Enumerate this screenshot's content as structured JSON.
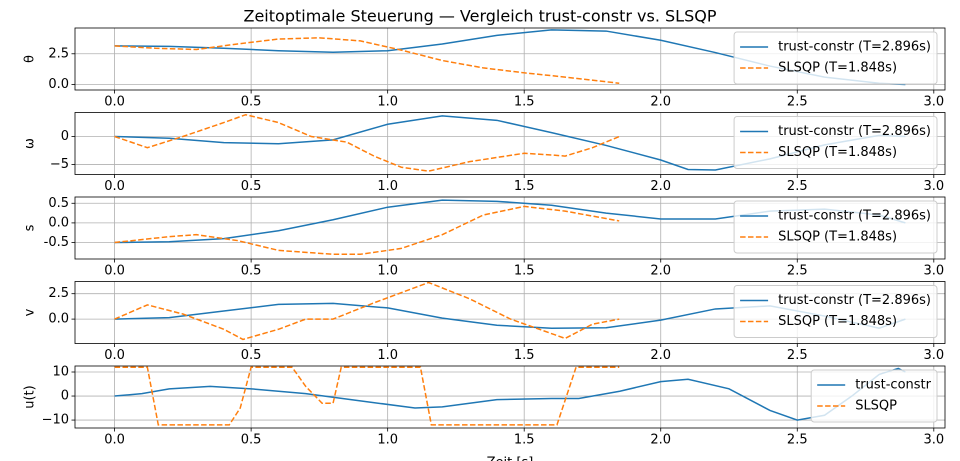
{
  "title": "Zeitoptimale Steuerung — Vergleich trust-constr vs. SLSQP",
  "chart_data": [
    {
      "type": "line",
      "ylabel": "θ",
      "grid": true,
      "legend": "upper right",
      "xlim": [
        -0.145,
        3.041
      ],
      "xticks": [
        {
          "value": 0,
          "label": "0.0"
        },
        0.5,
        {
          "value": 1,
          "label": "1.0"
        },
        1.5,
        {
          "value": 2,
          "label": "2.0"
        },
        2.5,
        {
          "value": 3,
          "label": "3.0"
        }
      ],
      "ylim": [
        -0.45,
        4.6
      ],
      "yticks": [
        {
          "value": 0,
          "label": "0.0"
        },
        2.5
      ],
      "series": [
        {
          "name": "trust-constr (T=2.896s)",
          "color": "#1f77b4",
          "dash": false,
          "x": [
            0,
            0.2,
            0.4,
            0.6,
            0.8,
            1.0,
            1.2,
            1.4,
            1.6,
            1.8,
            2.0,
            2.2,
            2.4,
            2.6,
            2.8,
            2.896
          ],
          "values": [
            3.14,
            3.1,
            2.95,
            2.75,
            2.62,
            2.75,
            3.3,
            4.0,
            4.45,
            4.35,
            3.6,
            2.6,
            1.5,
            0.6,
            0.1,
            0
          ]
        },
        {
          "name": "SLSQP (T=1.848s)",
          "color": "#ff7f0e",
          "dash": true,
          "x": [
            0,
            0.15,
            0.3,
            0.45,
            0.6,
            0.75,
            0.9,
            1.05,
            1.2,
            1.35,
            1.5,
            1.65,
            1.848
          ],
          "values": [
            3.14,
            2.95,
            2.85,
            3.3,
            3.7,
            3.8,
            3.55,
            2.8,
            1.95,
            1.35,
            0.95,
            0.6,
            0.1
          ]
        }
      ]
    },
    {
      "type": "line",
      "ylabel": "ω",
      "grid": true,
      "legend": "upper right",
      "xlim": [
        -0.145,
        3.041
      ],
      "xticks": [
        {
          "value": 0,
          "label": "0.0"
        },
        0.5,
        {
          "value": 1,
          "label": "1.0"
        },
        1.5,
        {
          "value": 2,
          "label": "2.0"
        },
        2.5,
        {
          "value": 3,
          "label": "3.0"
        }
      ],
      "ylim": [
        -6.8,
        4.3
      ],
      "yticks": [
        {
          "value": -5,
          "label": "−5"
        },
        0
      ],
      "series": [
        {
          "name": "trust-constr (T=2.896s)",
          "color": "#1f77b4",
          "dash": false,
          "x": [
            0,
            0.2,
            0.4,
            0.6,
            0.8,
            1.0,
            1.2,
            1.4,
            1.6,
            1.8,
            2.0,
            2.1,
            2.2,
            2.4,
            2.6,
            2.8,
            2.896
          ],
          "values": [
            0,
            -0.3,
            -1.1,
            -1.3,
            -0.6,
            2.2,
            3.7,
            2.9,
            0.7,
            -1.6,
            -4.2,
            -5.9,
            -6.0,
            -4.0,
            -1.5,
            0.2,
            0
          ]
        },
        {
          "name": "SLSQP (T=1.848s)",
          "color": "#ff7f0e",
          "dash": true,
          "x": [
            0,
            0.12,
            0.25,
            0.4,
            0.48,
            0.6,
            0.72,
            0.85,
            0.95,
            1.05,
            1.15,
            1.3,
            1.5,
            1.6,
            1.65,
            1.75,
            1.848
          ],
          "values": [
            0,
            -2,
            0,
            2.5,
            3.9,
            2.5,
            0,
            -1,
            -3.5,
            -5.5,
            -6.2,
            -4.5,
            -3,
            -3.3,
            -3.5,
            -2,
            0
          ]
        }
      ]
    },
    {
      "type": "line",
      "ylabel": "s",
      "grid": true,
      "legend": "upper right",
      "xlim": [
        -0.145,
        3.041
      ],
      "xticks": [
        {
          "value": 0,
          "label": "0.0"
        },
        0.5,
        {
          "value": 1,
          "label": "1.0"
        },
        1.5,
        {
          "value": 2,
          "label": "2.0"
        },
        2.5,
        {
          "value": 3,
          "label": "3.0"
        }
      ],
      "ylim": [
        -0.92,
        0.66
      ],
      "yticks": [
        -0.5,
        {
          "value": 0,
          "label": "0.0"
        },
        0.5
      ],
      "series": [
        {
          "name": "trust-constr (T=2.896s)",
          "color": "#1f77b4",
          "dash": false,
          "x": [
            0,
            0.2,
            0.4,
            0.6,
            0.8,
            1.0,
            1.2,
            1.4,
            1.6,
            1.8,
            2.0,
            2.2,
            2.4,
            2.6,
            2.8,
            2.896
          ],
          "values": [
            -0.5,
            -0.48,
            -0.4,
            -0.2,
            0.08,
            0.4,
            0.58,
            0.55,
            0.45,
            0.25,
            0.1,
            0.1,
            0.3,
            0.35,
            0.2,
            0
          ]
        },
        {
          "name": "SLSQP (T=1.848s)",
          "color": "#ff7f0e",
          "dash": true,
          "x": [
            0,
            0.2,
            0.3,
            0.45,
            0.6,
            0.8,
            0.9,
            1.05,
            1.2,
            1.35,
            1.5,
            1.65,
            1.848
          ],
          "values": [
            -0.5,
            -0.35,
            -0.3,
            -0.45,
            -0.7,
            -0.8,
            -0.8,
            -0.65,
            -0.3,
            0.2,
            0.42,
            0.3,
            0.05
          ]
        }
      ]
    },
    {
      "type": "line",
      "ylabel": "v",
      "grid": true,
      "legend": "upper right",
      "xlim": [
        -0.145,
        3.041
      ],
      "xticks": [
        {
          "value": 0,
          "label": "0.0"
        },
        0.5,
        {
          "value": 1,
          "label": "1.0"
        },
        1.5,
        {
          "value": 2,
          "label": "2.0"
        },
        2.5,
        {
          "value": 3,
          "label": "3.0"
        }
      ],
      "ylim": [
        -2.4,
        3.7
      ],
      "yticks": [
        {
          "value": 0,
          "label": "0.0"
        },
        2.5
      ],
      "series": [
        {
          "name": "trust-constr (T=2.896s)",
          "color": "#1f77b4",
          "dash": false,
          "x": [
            0,
            0.2,
            0.4,
            0.6,
            0.8,
            1.0,
            1.2,
            1.4,
            1.6,
            1.8,
            2.0,
            2.2,
            2.4,
            2.6,
            2.8,
            2.896
          ],
          "values": [
            0,
            0.15,
            0.8,
            1.45,
            1.55,
            1.1,
            0.1,
            -0.6,
            -0.9,
            -0.85,
            -0.1,
            1.0,
            1.3,
            0.3,
            -0.9,
            0
          ]
        },
        {
          "name": "SLSQP (T=1.848s)",
          "color": "#ff7f0e",
          "dash": true,
          "x": [
            0,
            0.12,
            0.25,
            0.4,
            0.47,
            0.6,
            0.7,
            0.8,
            0.95,
            1.15,
            1.3,
            1.45,
            1.65,
            1.75,
            1.848
          ],
          "values": [
            0,
            1.4,
            0.5,
            -1,
            -2,
            -1,
            0,
            0,
            1.6,
            3.6,
            2,
            0,
            -1.9,
            -0.5,
            0
          ]
        }
      ]
    },
    {
      "type": "line",
      "ylabel": "u(t)",
      "xlabel": "Zeit [s]",
      "grid": true,
      "legend": "upper right",
      "xlim": [
        -0.145,
        3.041
      ],
      "xticks": [
        {
          "value": 0,
          "label": "0.0"
        },
        0.5,
        {
          "value": 1,
          "label": "1.0"
        },
        1.5,
        {
          "value": 2,
          "label": "2.0"
        },
        2.5,
        {
          "value": 3,
          "label": "3.0"
        }
      ],
      "ylim": [
        -13.3,
        12.5
      ],
      "yticks": [
        {
          "value": -10,
          "label": "−10"
        },
        0,
        10
      ],
      "series": [
        {
          "name": "trust-constr",
          "color": "#1f77b4",
          "dash": false,
          "x": [
            0,
            0.1,
            0.2,
            0.35,
            0.5,
            0.7,
            0.9,
            1.1,
            1.2,
            1.4,
            1.6,
            1.7,
            1.85,
            2.0,
            2.1,
            2.25,
            2.4,
            2.5,
            2.6,
            2.7,
            2.8,
            2.87,
            2.896
          ],
          "values": [
            0,
            1,
            3,
            4,
            3,
            1,
            -2,
            -5,
            -4.5,
            -1.5,
            -1,
            -1,
            2,
            6,
            7,
            3,
            -6,
            -10,
            -8,
            0,
            9,
            11.5,
            10
          ]
        },
        {
          "name": "SLSQP",
          "color": "#ff7f0e",
          "dash": true,
          "x": [
            0,
            0.12,
            0.16,
            0.42,
            0.46,
            0.5,
            0.65,
            0.7,
            0.76,
            0.8,
            0.83,
            1.12,
            1.16,
            1.62,
            1.69,
            1.848
          ],
          "values": [
            12,
            12,
            -12,
            -12,
            -5,
            12,
            12,
            4,
            -3,
            -3,
            12,
            12,
            -12,
            -12,
            12,
            12
          ]
        }
      ]
    }
  ]
}
